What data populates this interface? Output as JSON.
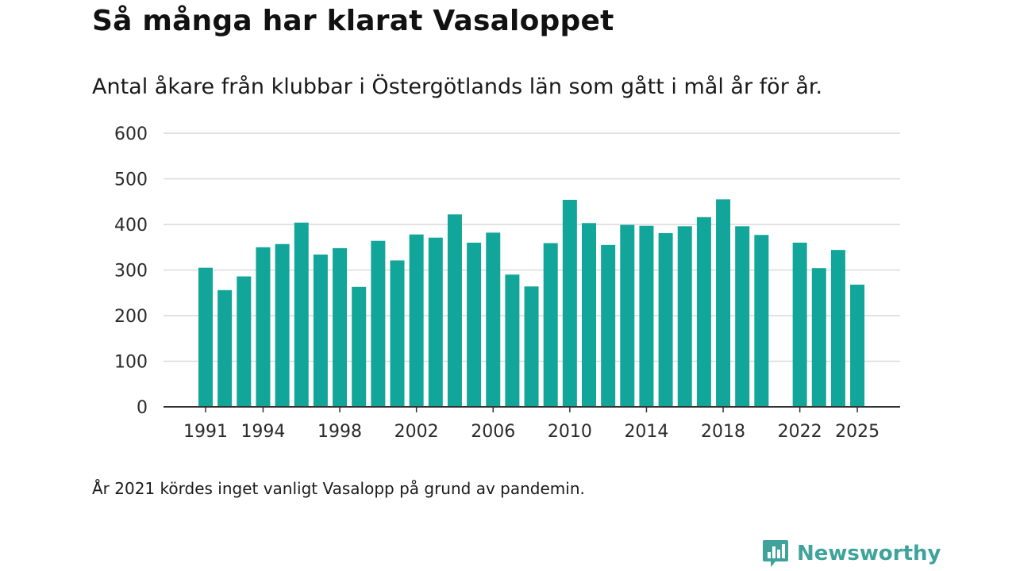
{
  "header": {
    "title": "Så många har klarat Vasaloppet",
    "subtitle": "Antal åkare från klubbar i Östergötlands län som gått i mål år för år."
  },
  "footer": {
    "note": "År 2021 kördes inget vanligt Vasalopp på grund av pandemin.",
    "brand": "Newsworthy",
    "brand_icon": "bar-chart-speech-bubble-icon"
  },
  "colors": {
    "bar": "#12a59a",
    "grid": "#d9d9d9",
    "axis": "#333333",
    "brand": "#3fa39b"
  },
  "chart_data": {
    "type": "bar",
    "title": "Så många har klarat Vasaloppet",
    "subtitle": "Antal åkare från klubbar i Östergötlands län som gått i mål år för år.",
    "xlabel": "",
    "ylabel": "",
    "ylim": [
      0,
      600
    ],
    "yticks": [
      0,
      100,
      200,
      300,
      400,
      500,
      600
    ],
    "xticks": [
      1991,
      1994,
      1998,
      2002,
      2006,
      2010,
      2014,
      2018,
      2022,
      2025
    ],
    "grid": true,
    "legend": "none",
    "categories": [
      1991,
      1992,
      1993,
      1994,
      1995,
      1996,
      1997,
      1998,
      1999,
      2000,
      2001,
      2002,
      2003,
      2004,
      2005,
      2006,
      2007,
      2008,
      2009,
      2010,
      2011,
      2012,
      2013,
      2014,
      2015,
      2016,
      2017,
      2018,
      2019,
      2020,
      2021,
      2022,
      2023,
      2024,
      2025
    ],
    "values": [
      305,
      256,
      286,
      350,
      357,
      404,
      334,
      348,
      263,
      364,
      321,
      378,
      371,
      422,
      360,
      382,
      290,
      264,
      359,
      454,
      403,
      355,
      399,
      397,
      381,
      396,
      416,
      455,
      396,
      377,
      null,
      360,
      304,
      344,
      268
    ]
  }
}
